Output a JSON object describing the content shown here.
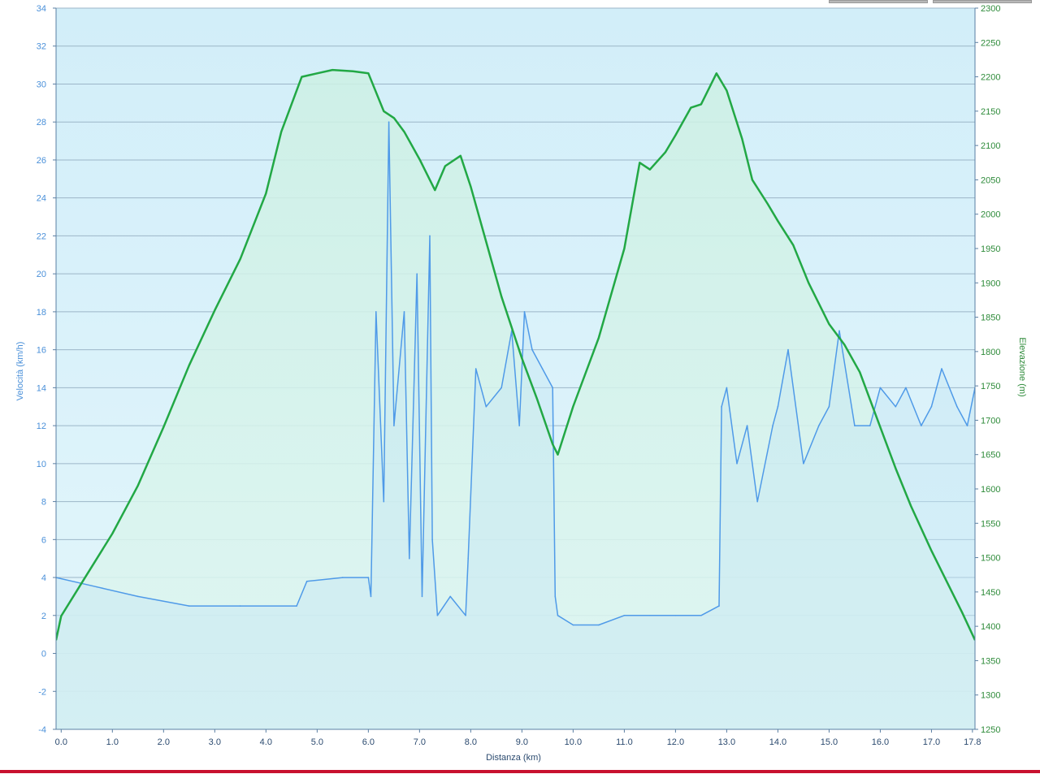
{
  "chart_data": {
    "type": "line",
    "xlabel": "Distanza  (km)",
    "ylabel_left": "Velocità (km/h)",
    "ylabel_right": "Elevazione (m)",
    "xlim": [
      -0.1,
      17.85
    ],
    "ylim_left": [
      -4,
      34
    ],
    "ylim_right": [
      1250,
      2300
    ],
    "grid": true,
    "x_ticks": [
      0.0,
      1.0,
      2.0,
      3.0,
      4.0,
      5.0,
      6.0,
      7.0,
      8.0,
      9.0,
      10.0,
      11.0,
      12.0,
      13.0,
      14.0,
      15.0,
      16.0,
      17.0,
      17.8
    ],
    "x_tick_labels": [
      "0.0",
      "1.0",
      "2.0",
      "3.0",
      "4.0",
      "5.0",
      "6.0",
      "7.0",
      "8.0",
      "9.0",
      "10.0",
      "11.0",
      "12.0",
      "13.0",
      "14.0",
      "15.0",
      "16.0",
      "17.0",
      "17.8"
    ],
    "y_left_ticks": [
      -4,
      -2,
      0,
      2,
      4,
      6,
      8,
      10,
      12,
      14,
      16,
      18,
      20,
      22,
      24,
      26,
      28,
      30,
      32,
      34
    ],
    "y_left_tick_labels": [
      "-4",
      "-2",
      "0",
      "2",
      "4",
      "6",
      "8",
      "10",
      "12",
      "14",
      "16",
      "18",
      "20",
      "22",
      "24",
      "26",
      "28",
      "30",
      "32",
      "34"
    ],
    "y_right_ticks": [
      1250,
      1300,
      1350,
      1400,
      1450,
      1500,
      1550,
      1600,
      1650,
      1700,
      1750,
      1800,
      1850,
      1900,
      1950,
      2000,
      2050,
      2100,
      2150,
      2200,
      2250,
      2300
    ],
    "y_right_tick_labels": [
      "1250",
      "1300",
      "1350",
      "1400",
      "1450",
      "1500",
      "1550",
      "1600",
      "1650",
      "1700",
      "1750",
      "1800",
      "1850",
      "1900",
      "1950",
      "2000",
      "2050",
      "2100",
      "2150",
      "2200",
      "2250",
      "2300"
    ],
    "series": [
      {
        "name": "Elevazione",
        "axis": "right",
        "color": "#22a845",
        "x": [
          -0.1,
          0.0,
          0.5,
          1.0,
          1.5,
          2.0,
          2.5,
          3.0,
          3.5,
          4.0,
          4.3,
          4.7,
          5.0,
          5.3,
          5.7,
          6.0,
          6.3,
          6.5,
          6.7,
          7.0,
          7.3,
          7.5,
          7.8,
          8.0,
          8.3,
          8.6,
          9.0,
          9.3,
          9.6,
          9.7,
          10.0,
          10.5,
          11.0,
          11.3,
          11.5,
          11.8,
          12.0,
          12.3,
          12.5,
          12.8,
          13.0,
          13.3,
          13.5,
          13.8,
          14.0,
          14.3,
          14.6,
          15.0,
          15.3,
          15.6,
          16.0,
          16.3,
          16.6,
          17.0,
          17.3,
          17.6,
          17.85
        ],
        "values": [
          1380,
          1415,
          1475,
          1535,
          1605,
          1690,
          1780,
          1860,
          1935,
          2030,
          2120,
          2200,
          2205,
          2210,
          2208,
          2205,
          2150,
          2140,
          2120,
          2080,
          2035,
          2070,
          2085,
          2040,
          1960,
          1880,
          1790,
          1730,
          1665,
          1650,
          1720,
          1820,
          1950,
          2075,
          2065,
          2090,
          2115,
          2155,
          2160,
          2205,
          2180,
          2110,
          2050,
          2015,
          1990,
          1955,
          1900,
          1840,
          1810,
          1770,
          1690,
          1630,
          1575,
          1510,
          1465,
          1420,
          1380
        ]
      },
      {
        "name": "Velocità",
        "axis": "left",
        "color": "#4f9ae8",
        "x": [
          -0.1,
          0.7,
          1.5,
          2.5,
          3.5,
          4.6,
          4.8,
          5.5,
          6.0,
          6.05,
          6.15,
          6.3,
          6.4,
          6.5,
          6.7,
          6.8,
          6.95,
          7.05,
          7.2,
          7.25,
          7.35,
          7.6,
          7.9,
          7.95,
          8.1,
          8.3,
          8.6,
          8.8,
          8.95,
          9.05,
          9.2,
          9.4,
          9.6,
          9.65,
          9.7,
          10.0,
          10.5,
          11.0,
          11.5,
          12.0,
          12.5,
          12.85,
          12.9,
          13.0,
          13.2,
          13.4,
          13.6,
          13.9,
          14.0,
          14.2,
          14.5,
          14.8,
          15.0,
          15.2,
          15.5,
          15.8,
          16.0,
          16.3,
          16.5,
          16.8,
          17.0,
          17.2,
          17.5,
          17.7,
          17.85
        ],
        "values": [
          4,
          3.5,
          3,
          2.5,
          2.5,
          2.5,
          3.8,
          4,
          4,
          3,
          18,
          8,
          28,
          12,
          18,
          5,
          20,
          3,
          22,
          6,
          2,
          3,
          2,
          5,
          15,
          13,
          14,
          17,
          12,
          18,
          16,
          15,
          14,
          3,
          2,
          1.5,
          1.5,
          2,
          2,
          2,
          2,
          2.5,
          13,
          14,
          10,
          12,
          8,
          12,
          13,
          16,
          10,
          12,
          13,
          17,
          12,
          12,
          14,
          13,
          14,
          12,
          13,
          15,
          13,
          12,
          14
        ]
      }
    ]
  }
}
